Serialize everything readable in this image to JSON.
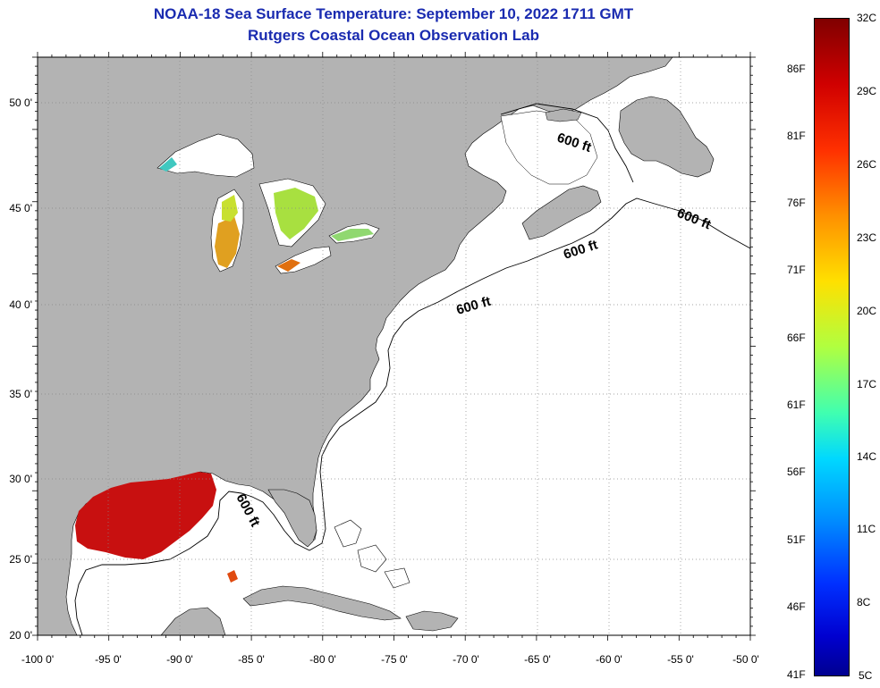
{
  "title": {
    "line1": "NOAA-18 Sea Surface Temperature:  September 10, 2022 1711 GMT",
    "line2": "Rutgers Coastal Ocean Observation Lab"
  },
  "axes": {
    "lon_labels": [
      "-100 0'",
      "-95 0'",
      "-90 0'",
      "-85 0'",
      "-80 0'",
      "-75 0'",
      "-70 0'",
      "-65 0'",
      "-60 0'",
      "-55 0'",
      "-50 0'"
    ],
    "lat_labels": [
      "50 0'",
      "45 0'",
      "40 0'",
      "35 0'",
      "30 0'",
      "25 0'",
      "20 0'"
    ]
  },
  "depth_contour": {
    "labels": [
      "600 ft",
      "600 ft",
      "600 ft",
      "600 ft",
      "600 ft"
    ]
  },
  "colorbar": {
    "celsius": [
      "32C",
      "29C",
      "26C",
      "23C",
      "20C",
      "17C",
      "14C",
      "11C",
      "8C",
      "5C"
    ],
    "fahrenheit": [
      "86F",
      "81F",
      "76F",
      "71F",
      "66F",
      "61F",
      "56F",
      "51F",
      "46F",
      "41F"
    ]
  },
  "colors": {
    "land": "#b3b3b3",
    "ocean": "#ffffff",
    "title": "#1a2bb0",
    "warm_sst": "#c81010"
  }
}
